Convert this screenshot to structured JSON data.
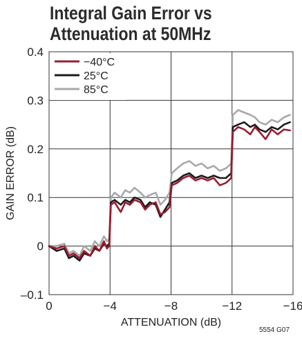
{
  "chart_data": {
    "type": "line",
    "title": [
      "Integral Gain Error vs",
      "Attenuation at 50MHz"
    ],
    "xlabel": "ATTENUATION (dB)",
    "ylabel": "GAIN ERROR (dB)",
    "xlim": [
      0,
      -16
    ],
    "ylim": [
      -0.1,
      0.4
    ],
    "xticks": [
      0,
      -4,
      -8,
      -12,
      -16
    ],
    "xtick_labels": [
      "0",
      "−4",
      "−8",
      "−12",
      "−16"
    ],
    "yticks": [
      -0.1,
      0,
      0.1,
      0.2,
      0.3,
      0.4
    ],
    "ytick_labels": [
      "–0.1",
      "0",
      "0.1",
      "0.2",
      "0.3",
      "0.4"
    ],
    "grid": true,
    "legend_position": "top-left",
    "series": [
      {
        "name": "−40°C",
        "color": "#9b1b30",
        "x": [
          0,
          -0.5,
          -1,
          -1.3,
          -1.6,
          -2,
          -2.3,
          -2.7,
          -3,
          -3.3,
          -3.6,
          -3.8,
          -3.95,
          -4.05,
          -4.3,
          -4.7,
          -5,
          -5.3,
          -5.6,
          -6,
          -6.3,
          -6.6,
          -7,
          -7.3,
          -7.6,
          -7.9,
          -8.05,
          -8.4,
          -8.8,
          -9.2,
          -9.6,
          -10,
          -10.4,
          -10.8,
          -11.2,
          -11.6,
          -11.95,
          -12.05,
          -12.4,
          -12.8,
          -13.2,
          -13.5,
          -13.8,
          -14.2,
          -14.6,
          -15,
          -15.4,
          -15.8
        ],
        "y": [
          0.0,
          -0.005,
          0.0,
          -0.02,
          -0.015,
          -0.025,
          -0.01,
          -0.02,
          0.0,
          -0.01,
          0.01,
          -0.005,
          0.0,
          0.085,
          0.09,
          0.07,
          0.09,
          0.085,
          0.095,
          0.09,
          0.075,
          0.085,
          0.09,
          0.065,
          0.07,
          0.08,
          0.125,
          0.13,
          0.14,
          0.145,
          0.135,
          0.14,
          0.135,
          0.14,
          0.125,
          0.13,
          0.14,
          0.235,
          0.245,
          0.24,
          0.23,
          0.245,
          0.235,
          0.22,
          0.24,
          0.23,
          0.24,
          0.238
        ]
      },
      {
        "name": "25°C",
        "color": "#1a1a1a",
        "x": [
          0,
          -0.5,
          -1,
          -1.3,
          -1.6,
          -2,
          -2.3,
          -2.7,
          -3,
          -3.3,
          -3.6,
          -3.8,
          -3.95,
          -4.05,
          -4.3,
          -4.7,
          -5,
          -5.3,
          -5.6,
          -6,
          -6.3,
          -6.6,
          -7,
          -7.3,
          -7.6,
          -7.9,
          -8.05,
          -8.4,
          -8.8,
          -9.2,
          -9.6,
          -10,
          -10.4,
          -10.8,
          -11.2,
          -11.6,
          -11.95,
          -12.05,
          -12.4,
          -12.8,
          -13.2,
          -13.5,
          -13.8,
          -14.2,
          -14.6,
          -15,
          -15.4,
          -15.8
        ],
        "y": [
          0.0,
          -0.01,
          -0.005,
          -0.025,
          -0.02,
          -0.03,
          -0.015,
          -0.02,
          -0.005,
          -0.01,
          0.005,
          0.0,
          0.005,
          0.09,
          0.095,
          0.085,
          0.095,
          0.09,
          0.1,
          0.095,
          0.08,
          0.09,
          0.085,
          0.06,
          0.075,
          0.09,
          0.13,
          0.135,
          0.145,
          0.15,
          0.14,
          0.145,
          0.14,
          0.145,
          0.14,
          0.14,
          0.15,
          0.245,
          0.25,
          0.255,
          0.245,
          0.25,
          0.24,
          0.235,
          0.245,
          0.24,
          0.25,
          0.255
        ]
      },
      {
        "name": "85°C",
        "color": "#a8a8a8",
        "x": [
          0,
          -0.5,
          -1,
          -1.3,
          -1.6,
          -2,
          -2.3,
          -2.7,
          -3,
          -3.3,
          -3.6,
          -3.8,
          -3.95,
          -4.05,
          -4.3,
          -4.7,
          -5,
          -5.3,
          -5.6,
          -6,
          -6.3,
          -6.6,
          -7,
          -7.3,
          -7.6,
          -7.9,
          -8.05,
          -8.4,
          -8.8,
          -9.2,
          -9.6,
          -10,
          -10.4,
          -10.8,
          -11.2,
          -11.6,
          -11.95,
          -12.05,
          -12.4,
          -12.8,
          -13.2,
          -13.5,
          -13.8,
          -14.2,
          -14.6,
          -15,
          -15.4,
          -15.8
        ],
        "y": [
          0.0,
          0.0,
          0.005,
          -0.015,
          -0.01,
          -0.02,
          0.0,
          -0.01,
          0.01,
          0.0,
          0.02,
          0.01,
          0.015,
          0.1,
          0.11,
          0.1,
          0.115,
          0.11,
          0.12,
          0.11,
          0.1,
          0.105,
          0.11,
          0.085,
          0.095,
          0.11,
          0.15,
          0.16,
          0.17,
          0.175,
          0.165,
          0.17,
          0.16,
          0.165,
          0.155,
          0.16,
          0.17,
          0.27,
          0.28,
          0.275,
          0.27,
          0.265,
          0.255,
          0.25,
          0.26,
          0.255,
          0.265,
          0.27
        ]
      }
    ]
  },
  "figure_id": "5554 G07"
}
